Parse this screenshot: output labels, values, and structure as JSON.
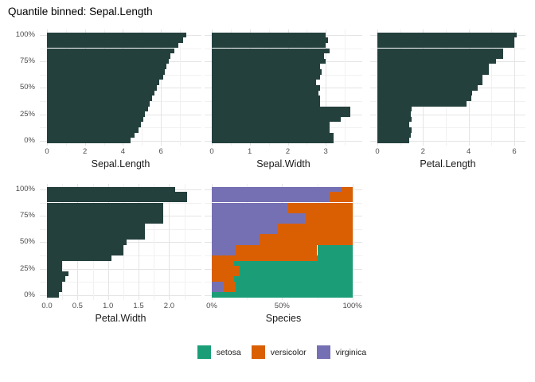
{
  "title": "Quantile binned: Sepal.Length",
  "colors": {
    "bar": "#24403d",
    "setosa": "#1b9e77",
    "versicolor": "#d95f02",
    "virginica": "#7570b3",
    "grid_major": "#e4e4e4",
    "grid_minor": "#f1f1f1",
    "tick_label": "#4d4d4d",
    "axis_title": "#1a1a1a",
    "title": "#000000",
    "background": "#ffffff"
  },
  "y_axis": {
    "tick_labels": [
      "0%",
      "25%",
      "50%",
      "75%",
      "100%"
    ],
    "tick_values": [
      0,
      25,
      50,
      75,
      100
    ],
    "minor_values": [
      12.5,
      37.5,
      62.5,
      87.5
    ]
  },
  "percentiles": [
    0,
    5,
    10,
    15,
    20,
    25,
    30,
    35,
    40,
    45,
    50,
    55,
    60,
    65,
    70,
    75,
    80,
    85,
    90,
    95,
    100
  ],
  "legend": {
    "items": [
      {
        "key": "setosa",
        "label": "setosa"
      },
      {
        "key": "versicolor",
        "label": "versicolor"
      },
      {
        "key": "virginica",
        "label": "virginica"
      }
    ]
  },
  "chart_data": [
    {
      "key": "sepal_length",
      "panel": "Sepal.Length",
      "type": "bar",
      "orientation": "horizontal",
      "xlabel": "Sepal.Length",
      "x_ticks": [
        0,
        2,
        4,
        6
      ],
      "x_tick_labels": [
        "0",
        "2",
        "4",
        "6"
      ],
      "x_minor": [
        1,
        3,
        5,
        7
      ],
      "x_range": [
        0,
        8.13
      ],
      "values_order": "percentile 0% (bottom) to 100% (top)",
      "values": [
        4.4,
        4.6,
        4.8,
        4.95,
        5.05,
        5.15,
        5.3,
        5.4,
        5.55,
        5.65,
        5.8,
        5.9,
        6.1,
        6.2,
        6.3,
        6.4,
        6.5,
        6.7,
        6.9,
        7.15,
        7.35
      ]
    },
    {
      "key": "sepal_width",
      "panel": "Sepal.Width",
      "type": "bar",
      "orientation": "horizontal",
      "xlabel": "Sepal.Width",
      "x_ticks": [
        0,
        1,
        2,
        3
      ],
      "x_tick_labels": [
        "0",
        "1",
        "2",
        "3"
      ],
      "x_minor": [
        0.5,
        1.5,
        2.5,
        3.5
      ],
      "x_range": [
        0,
        3.96
      ],
      "values_order": "percentile 0% (bottom) to 100% (top)",
      "values": [
        3.2,
        3.2,
        3.1,
        3.1,
        3.4,
        3.65,
        3.65,
        2.85,
        2.85,
        2.8,
        2.85,
        2.75,
        2.85,
        2.9,
        2.85,
        3.0,
        2.95,
        3.1,
        3.0,
        3.05,
        3.0
      ]
    },
    {
      "key": "petal_length",
      "panel": "Petal.Length",
      "type": "bar",
      "orientation": "horizontal",
      "xlabel": "Petal.Length",
      "x_ticks": [
        0,
        2,
        4,
        6
      ],
      "x_tick_labels": [
        "0",
        "2",
        "4",
        "6"
      ],
      "x_minor": [
        1,
        3,
        5
      ],
      "x_range": [
        0,
        6.49
      ],
      "values_order": "percentile 0% (bottom) to 100% (top)",
      "values": [
        1.4,
        1.45,
        1.5,
        1.4,
        1.5,
        1.45,
        1.5,
        3.9,
        4.1,
        4.15,
        4.4,
        4.6,
        4.6,
        4.9,
        4.9,
        5.2,
        5.5,
        5.5,
        6.0,
        6.0,
        6.1
      ]
    },
    {
      "key": "petal_width",
      "panel": "Petal.Width",
      "type": "bar",
      "orientation": "horizontal",
      "xlabel": "Petal.Width",
      "x_ticks": [
        0,
        0.5,
        1.0,
        1.5,
        2.0
      ],
      "x_tick_labels": [
        "0.0",
        "0.5",
        "1.0",
        "1.5",
        "2.0"
      ],
      "x_minor": [
        0.25,
        0.75,
        1.25,
        1.75,
        2.25
      ],
      "x_range": [
        0,
        2.53
      ],
      "values_order": "percentile 0% (bottom) to 100% (top)",
      "values": [
        0.2,
        0.25,
        0.25,
        0.3,
        0.35,
        0.25,
        0.25,
        1.05,
        1.25,
        1.25,
        1.3,
        1.6,
        1.6,
        1.6,
        1.9,
        1.9,
        1.9,
        1.9,
        2.3,
        2.3,
        2.1
      ]
    },
    {
      "key": "species",
      "panel": "Species",
      "type": "stacked-bar",
      "orientation": "horizontal",
      "xlabel": "Species",
      "x_ticks": [
        0,
        50,
        100
      ],
      "x_tick_labels": [
        "0%",
        "50%",
        "100%"
      ],
      "x_minor": [
        25,
        75
      ],
      "x_range": [
        0,
        107
      ],
      "stack_order": [
        "virginica",
        "versicolor",
        "setosa"
      ],
      "rows_order": "percentile 0% (bottom) to 100% (top); each row = [virginica%, versicolor%, setosa%]",
      "rows": [
        [
          0,
          0,
          100
        ],
        [
          8,
          9,
          83
        ],
        [
          8,
          9,
          83
        ],
        [
          0,
          16,
          84
        ],
        [
          0,
          20,
          80
        ],
        [
          0,
          20,
          80
        ],
        [
          0,
          16,
          84
        ],
        [
          0,
          75,
          25
        ],
        [
          17,
          58,
          25
        ],
        [
          17,
          58,
          25
        ],
        [
          34,
          66,
          0
        ],
        [
          34,
          66,
          0
        ],
        [
          47,
          53,
          0
        ],
        [
          47,
          53,
          0
        ],
        [
          66,
          34,
          0
        ],
        [
          66,
          34,
          0
        ],
        [
          54,
          46,
          0
        ],
        [
          54,
          46,
          0
        ],
        [
          84,
          16,
          0
        ],
        [
          84,
          16,
          0
        ],
        [
          92,
          8,
          0
        ]
      ]
    }
  ]
}
